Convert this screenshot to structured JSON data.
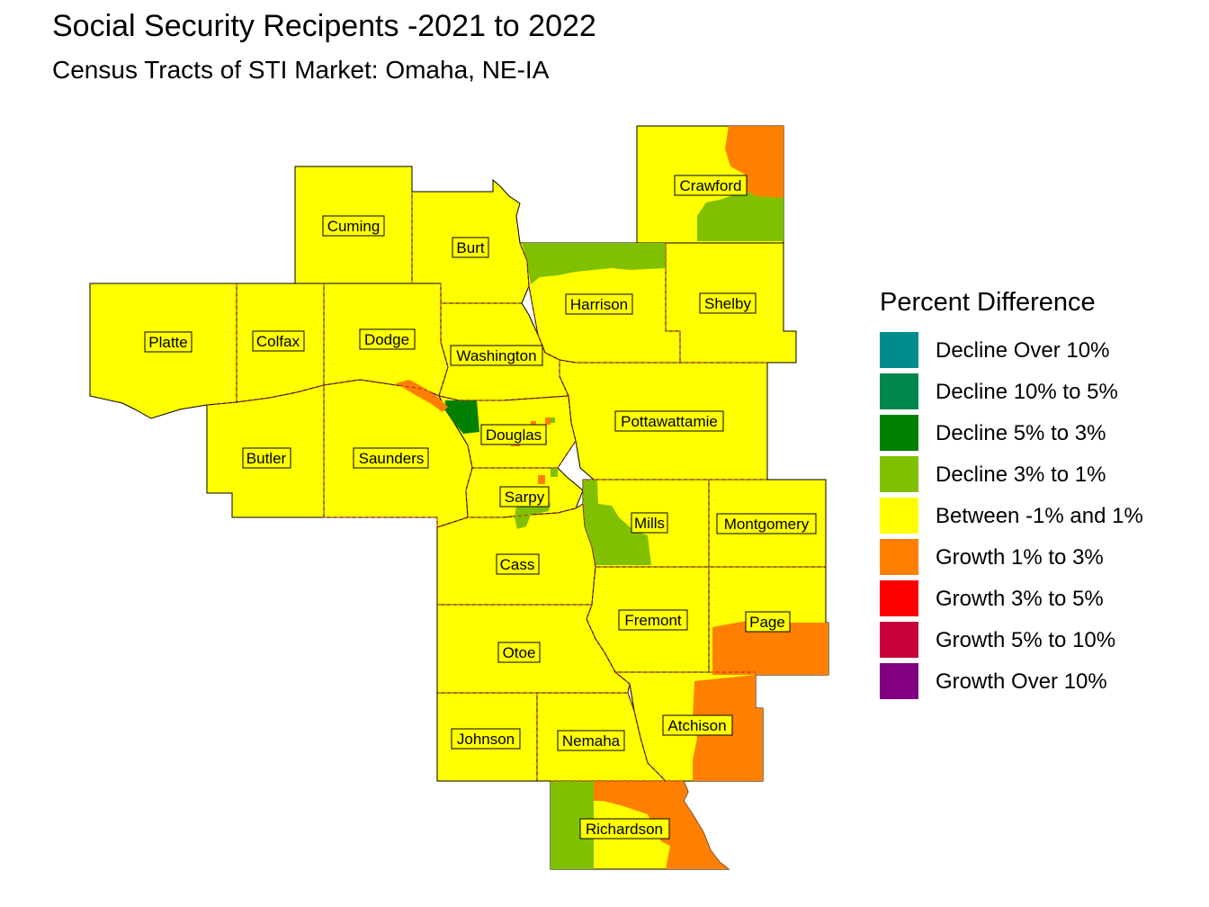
{
  "title": "Social Security Recipents -2021 to 2022",
  "subtitle": "Census Tracts of STI Market: Omaha, NE-IA",
  "colors": {
    "between": "#ffff00",
    "boundary": "#b22222",
    "decline_3_1": "#80c000",
    "decline_5_3": "#008000",
    "growth_1_3": "#ff7f00"
  },
  "legend": {
    "title": "Percent Difference",
    "items": [
      {
        "label": "Decline Over 10%",
        "color": "#008b8b"
      },
      {
        "label": "Decline 10% to 5%",
        "color": "#00874a"
      },
      {
        "label": "Decline 5% to 3%",
        "color": "#008000"
      },
      {
        "label": "Decline 3% to 1%",
        "color": "#80c000"
      },
      {
        "label": "Between -1% and 1%",
        "color": "#ffff00"
      },
      {
        "label": "Growth 1% to 3%",
        "color": "#ff7f00"
      },
      {
        "label": "Growth 3% to 5%",
        "color": "#ff0000"
      },
      {
        "label": "Growth 5% to 10%",
        "color": "#c8003c"
      },
      {
        "label": "Growth Over 10%",
        "color": "#800080"
      }
    ]
  },
  "counties": [
    {
      "name": "Crawford"
    },
    {
      "name": "Cuming"
    },
    {
      "name": "Burt"
    },
    {
      "name": "Harrison"
    },
    {
      "name": "Shelby"
    },
    {
      "name": "Platte"
    },
    {
      "name": "Colfax"
    },
    {
      "name": "Dodge"
    },
    {
      "name": "Washington"
    },
    {
      "name": "Pottawattamie"
    },
    {
      "name": "Douglas"
    },
    {
      "name": "Butler"
    },
    {
      "name": "Saunders"
    },
    {
      "name": "Sarpy"
    },
    {
      "name": "Mills"
    },
    {
      "name": "Montgomery"
    },
    {
      "name": "Cass"
    },
    {
      "name": "Fremont"
    },
    {
      "name": "Page"
    },
    {
      "name": "Otoe"
    },
    {
      "name": "Atchison"
    },
    {
      "name": "Johnson"
    },
    {
      "name": "Nemaha"
    },
    {
      "name": "Richardson"
    }
  ]
}
